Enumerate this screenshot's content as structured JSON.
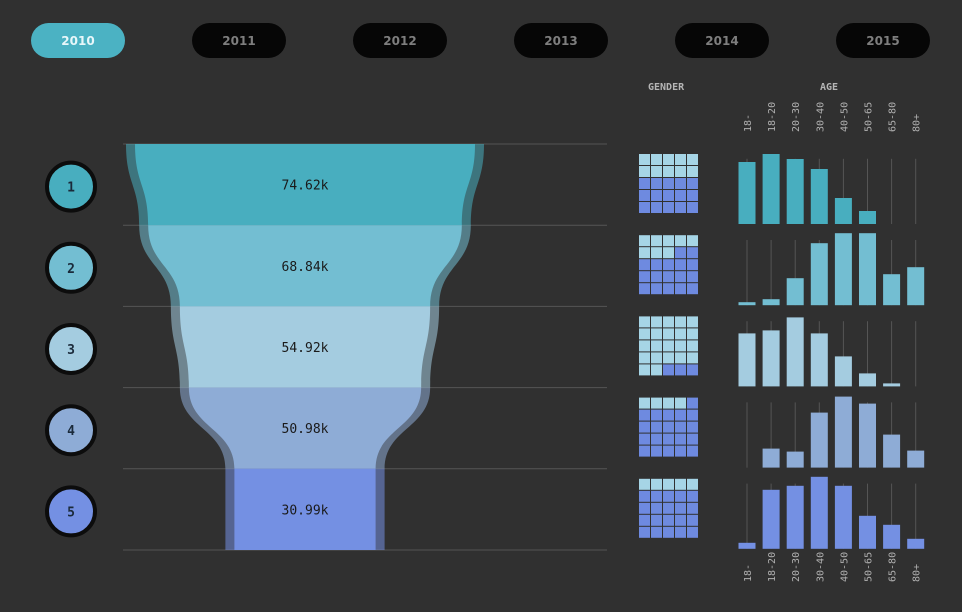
{
  "years": [
    "2010",
    "2011",
    "2012",
    "2013",
    "2014",
    "2015"
  ],
  "active_year": "2010",
  "headers": {
    "gender": "GENDER",
    "age": "AGE"
  },
  "colors": {
    "background": "#303030",
    "stages": [
      "#48aebf",
      "#73bed2",
      "#a4cce0",
      "#8eacd6",
      "#7490e3"
    ],
    "gender_light": "#a6d5e6",
    "gender_dark": "#6e8ae0",
    "axis_line": "#555555",
    "stage_circle_border": "#0c0c0c"
  },
  "chart_data": [
    {
      "type": "funnel",
      "categories": [
        "1",
        "2",
        "3",
        "4",
        "5"
      ],
      "values": [
        74.62,
        68.84,
        54.92,
        50.98,
        30.99
      ],
      "labels": [
        "74.62k",
        "68.84k",
        "54.92k",
        "50.98k",
        "30.99k"
      ]
    },
    {
      "type": "bar",
      "title": "AGE",
      "categories": [
        "18-",
        "18-20",
        "20-30",
        "30-40",
        "40-50",
        "50-65",
        "65-80",
        "80+"
      ],
      "series": [
        {
          "name": "1",
          "values": [
            62,
            70,
            65,
            55,
            26,
            13,
            0,
            0
          ]
        },
        {
          "name": "2",
          "values": [
            3,
            6,
            27,
            62,
            72,
            72,
            31,
            38
          ]
        },
        {
          "name": "3",
          "values": [
            53,
            56,
            69,
            53,
            30,
            13,
            3,
            0
          ]
        },
        {
          "name": "4",
          "values": [
            0,
            19,
            16,
            55,
            71,
            64,
            33,
            17
          ]
        },
        {
          "name": "5",
          "values": [
            6,
            59,
            63,
            72,
            63,
            33,
            24,
            10
          ]
        }
      ]
    },
    {
      "type": "waffle",
      "title": "GENDER",
      "grid": [
        5,
        5
      ],
      "series": [
        {
          "name": "1",
          "dark_cells": 15
        },
        {
          "name": "2",
          "dark_cells": 17
        },
        {
          "name": "3",
          "dark_cells": 3
        },
        {
          "name": "4",
          "dark_cells": 21
        },
        {
          "name": "5",
          "dark_cells": 20
        }
      ]
    }
  ]
}
